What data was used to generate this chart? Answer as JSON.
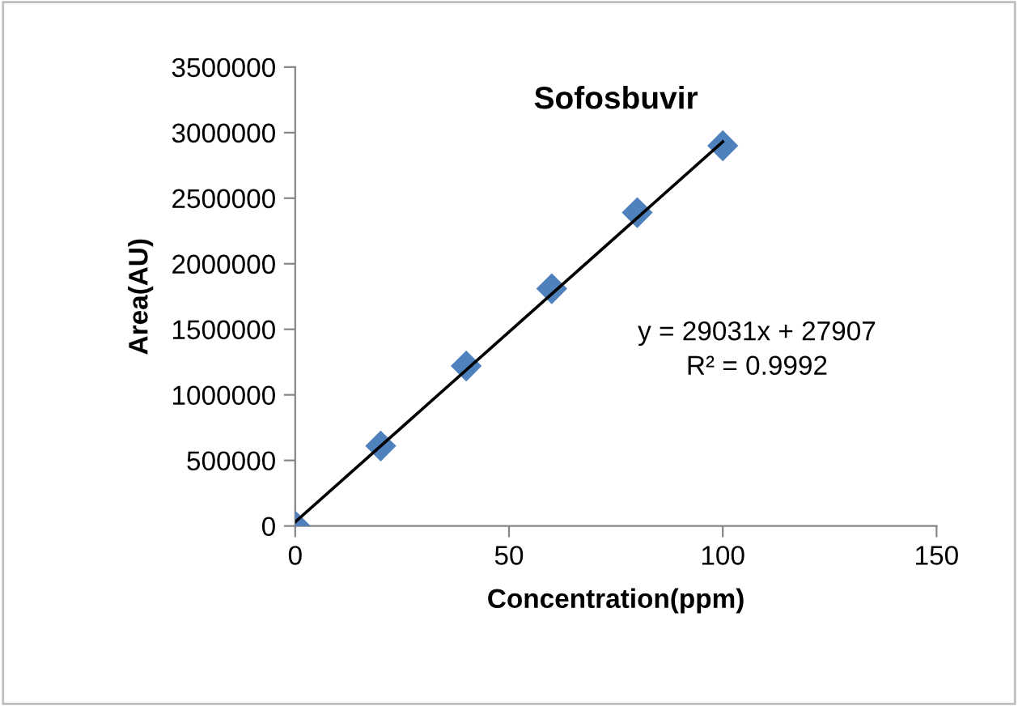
{
  "chart_data": {
    "type": "scatter",
    "title": "Sofosbuvir",
    "xlabel": "Concentration(ppm)",
    "ylabel": "Area(AU)",
    "x": [
      0,
      20,
      40,
      60,
      80,
      100
    ],
    "series": [
      {
        "color": "#4f81bd",
        "marker": "diamond",
        "values": [
          0,
          610000,
          1220000,
          1810000,
          2390000,
          2900000
        ]
      },
      {
        "type": "line",
        "color": "#000000",
        "marker": "none",
        "line_style": "solid",
        "x": [
          0,
          100
        ],
        "values": [
          30000,
          2930000
        ]
      }
    ],
    "annotations": [
      "y = 29031x + 27907",
      "R² = 0.9992"
    ],
    "xlim": [
      0,
      150
    ],
    "xticks": [
      0,
      50,
      100,
      150
    ],
    "ylim": [
      0,
      3500000
    ],
    "yticks": [
      0,
      500000,
      1000000,
      1500000,
      2000000,
      2500000,
      3000000,
      3500000
    ],
    "grid": false,
    "legend": false
  }
}
